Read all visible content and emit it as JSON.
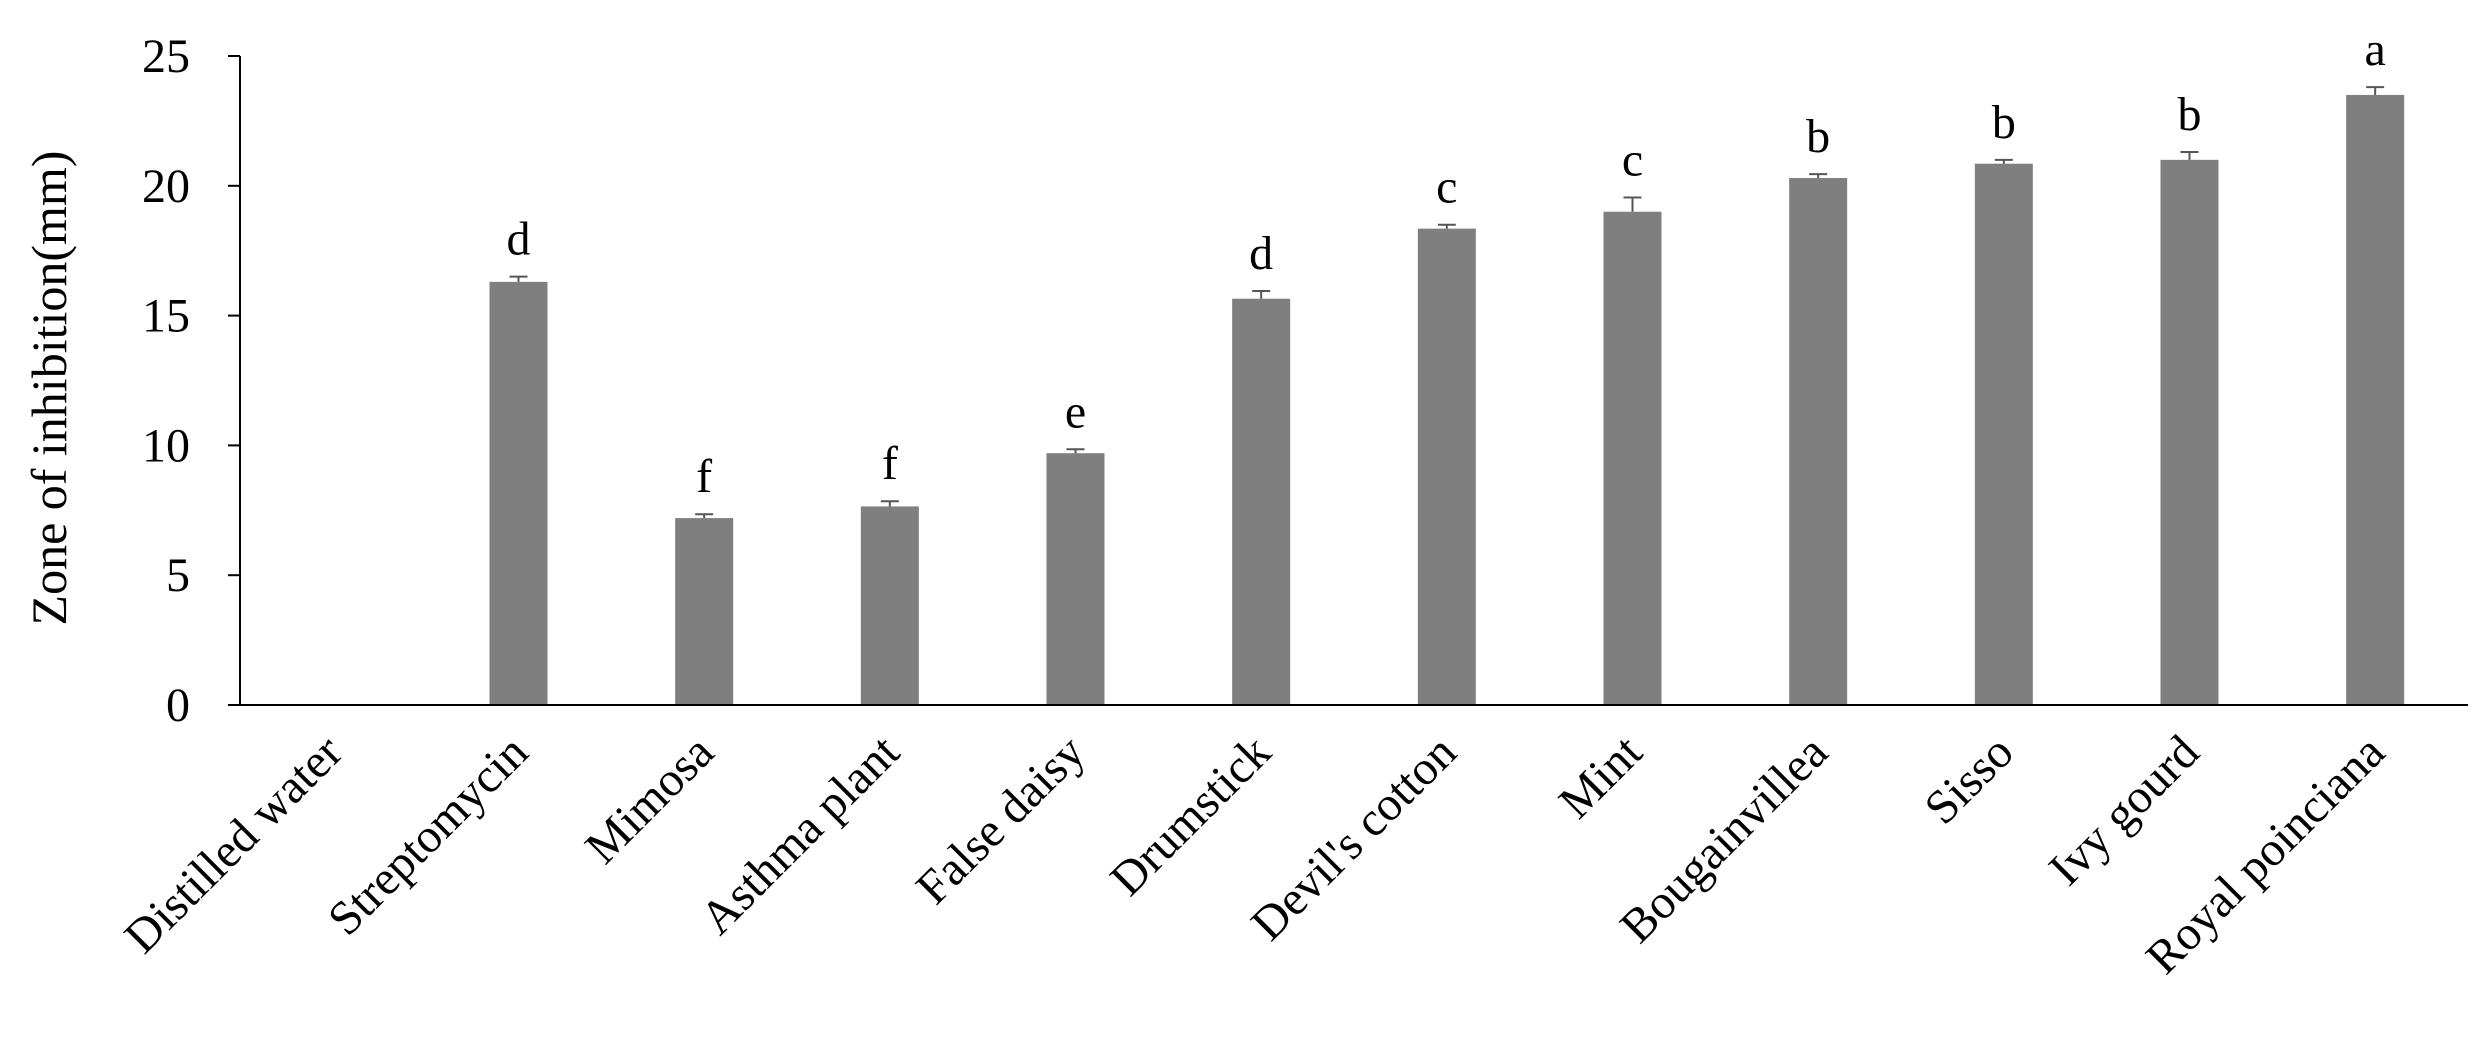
{
  "chart_data": {
    "type": "bar",
    "title": "",
    "xlabel": "",
    "ylabel": "Zone of inhibition(mm)",
    "ylim": [
      0,
      25
    ],
    "yticks": [
      0,
      5,
      10,
      15,
      20,
      25
    ],
    "grid": false,
    "legend": "none",
    "bar_color": "#7f7f7f",
    "categories": [
      "Distilled water",
      "Streptomycin",
      "Mimosa",
      "Asthma plant",
      "False daisy",
      "Drumstick",
      "Devil's cotton",
      "Mint",
      "Bougainvillea",
      "Sisso",
      "Ivy gourd",
      "Royal poinciana"
    ],
    "values": [
      0,
      16.3,
      7.2,
      7.65,
      9.7,
      15.65,
      18.35,
      19.0,
      20.3,
      20.85,
      21.0,
      23.5
    ],
    "errors": [
      0,
      0.2,
      0.15,
      0.2,
      0.15,
      0.3,
      0.15,
      0.55,
      0.15,
      0.15,
      0.3,
      0.3
    ],
    "significance_letters": [
      "",
      "d",
      "f",
      "f",
      "e",
      "d",
      "c",
      "c",
      "b",
      "b",
      "b",
      "a"
    ]
  }
}
